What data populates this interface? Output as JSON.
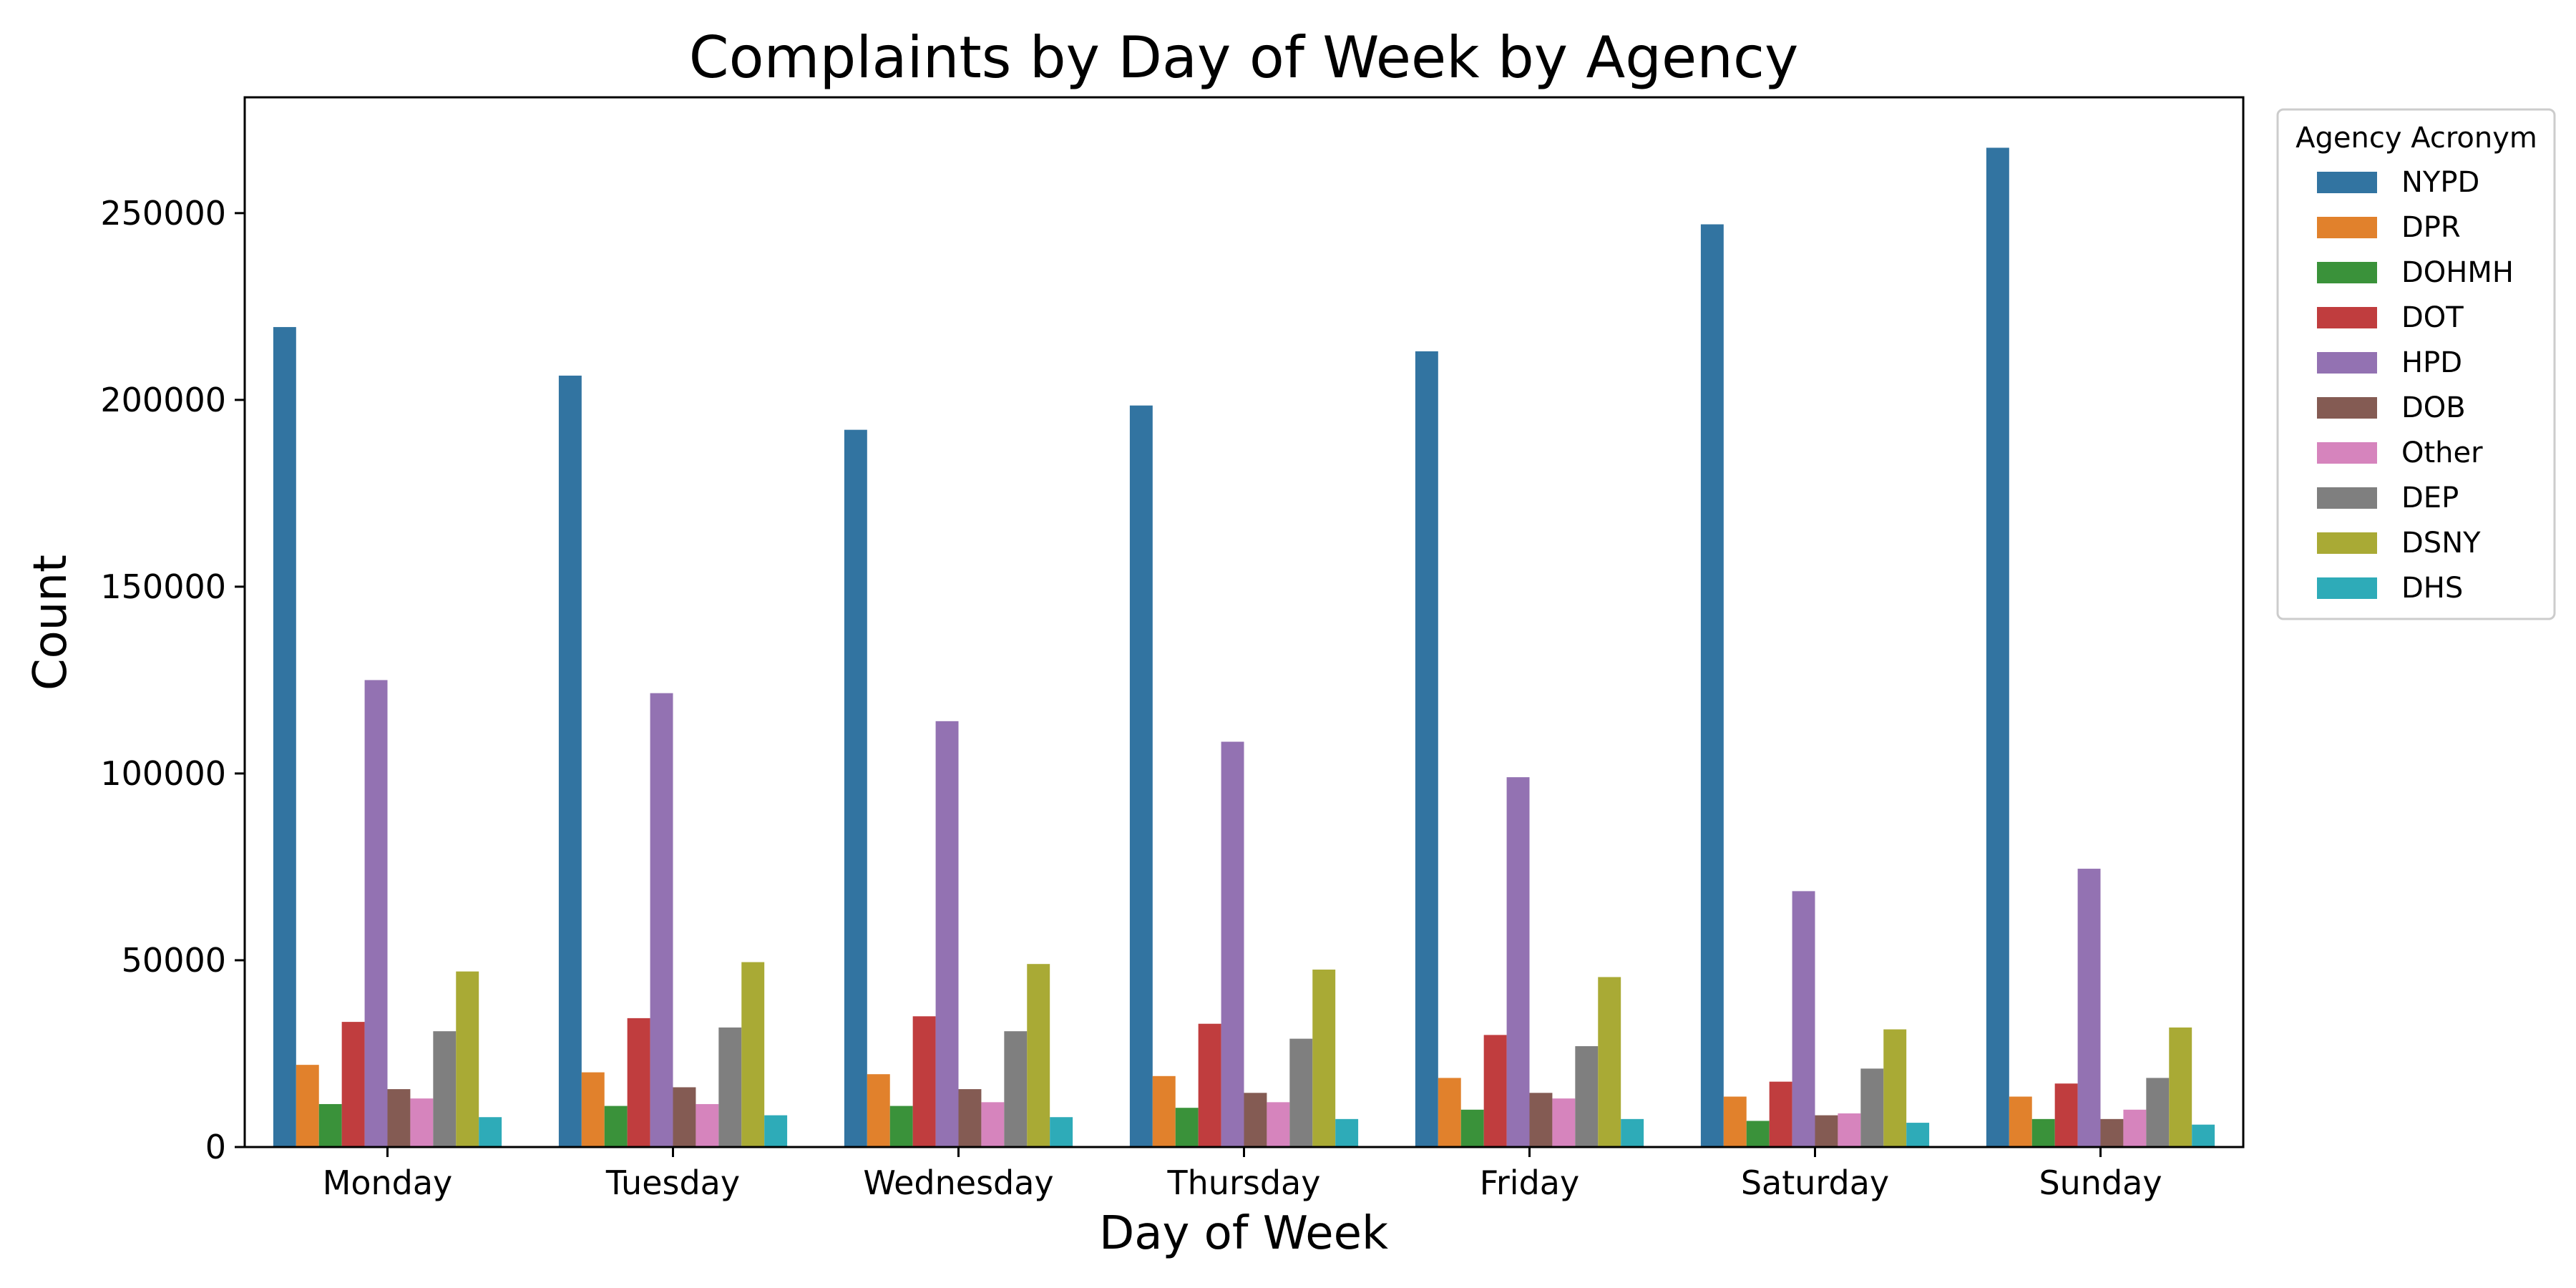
{
  "chart_data": {
    "type": "bar",
    "title": "Complaints by Day of Week by Agency",
    "xlabel": "Day of Week",
    "ylabel": "Count",
    "ylim": [
      0,
      281000
    ],
    "yticks": [
      0,
      50000,
      100000,
      150000,
      200000,
      250000
    ],
    "ytick_labels": [
      "0",
      "50000",
      "100000",
      "150000",
      "200000",
      "250000"
    ],
    "grid": false,
    "legend_placement": "outside-top-right",
    "legend_title": "Agency Acronym",
    "categories": [
      "Monday",
      "Tuesday",
      "Wednesday",
      "Thursday",
      "Friday",
      "Saturday",
      "Sunday"
    ],
    "series": [
      {
        "name": "NYPD",
        "color": "#3274a1",
        "values": [
          219500,
          206500,
          192000,
          198500,
          213000,
          247000,
          267500
        ]
      },
      {
        "name": "DPR",
        "color": "#e1812c",
        "values": [
          22000,
          20000,
          19500,
          19000,
          18500,
          13500,
          13500
        ]
      },
      {
        "name": "DOHMH",
        "color": "#3a923a",
        "values": [
          11500,
          11000,
          11000,
          10500,
          10000,
          7000,
          7500
        ]
      },
      {
        "name": "DOT",
        "color": "#c03d3e",
        "values": [
          33500,
          34500,
          35000,
          33000,
          30000,
          17500,
          17000
        ]
      },
      {
        "name": "HPD",
        "color": "#9372b2",
        "values": [
          125000,
          121500,
          114000,
          108500,
          99000,
          68500,
          74500
        ]
      },
      {
        "name": "DOB",
        "color": "#845b53",
        "values": [
          15500,
          16000,
          15500,
          14500,
          14500,
          8500,
          7500
        ]
      },
      {
        "name": "Other",
        "color": "#d684bd",
        "values": [
          13000,
          11500,
          12000,
          12000,
          13000,
          9000,
          10000
        ]
      },
      {
        "name": "DEP",
        "color": "#7f7f7f",
        "values": [
          31000,
          32000,
          31000,
          29000,
          27000,
          21000,
          18500
        ]
      },
      {
        "name": "DSNY",
        "color": "#a9aa35",
        "values": [
          47000,
          49500,
          49000,
          47500,
          45500,
          31500,
          32000
        ]
      },
      {
        "name": "DHS",
        "color": "#2eabb8",
        "values": [
          8000,
          8500,
          8000,
          7500,
          7500,
          6500,
          6000
        ]
      }
    ]
  }
}
